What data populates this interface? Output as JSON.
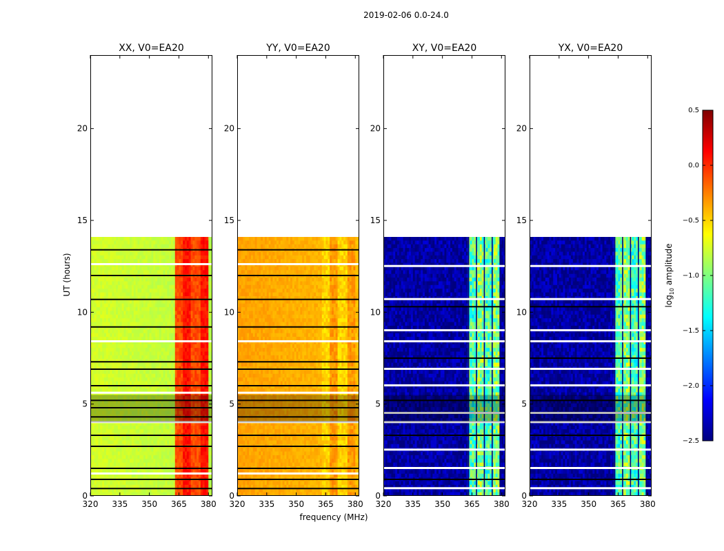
{
  "figure": {
    "suptitle": "2019-02-06 0.0-24.0",
    "xlabel": "frequency (MHz)",
    "ylabel": "UT (hours)"
  },
  "chart_data": [
    {
      "type": "heatmap",
      "title": "XX, V0=EA20",
      "xlim": [
        320,
        382
      ],
      "ylim": [
        0,
        24
      ],
      "xticks": [
        "320",
        "335",
        "350",
        "365",
        "380"
      ],
      "yticks": [
        "0",
        "5",
        "10",
        "15",
        "20"
      ],
      "data_ut_range": [
        0,
        14.1
      ],
      "panel_style": "diag",
      "base_log10_amplitude": -0.75,
      "rfi_band_mhz": [
        363,
        380
      ],
      "rfi_log10_amplitude": -0.05,
      "flagged_ut_hours": [
        0.4,
        0.9,
        1.2,
        1.5,
        2.7,
        3.3,
        4.0,
        4.3,
        4.8,
        5.2,
        5.6,
        6.0,
        6.9,
        7.3,
        8.4,
        9.2,
        10.7,
        12.0,
        12.6,
        13.4
      ]
    },
    {
      "type": "heatmap",
      "title": "YY, V0=EA20",
      "xlim": [
        320,
        382
      ],
      "ylim": [
        0,
        24
      ],
      "xticks": [
        "320",
        "335",
        "350",
        "365",
        "380"
      ],
      "yticks": [
        "0",
        "5",
        "10",
        "15",
        "20"
      ],
      "data_ut_range": [
        0,
        14.1
      ],
      "panel_style": "diag",
      "base_log10_amplitude": -0.35,
      "rfi_band_mhz": [
        363,
        380
      ],
      "rfi_log10_amplitude": -0.45,
      "flagged_ut_hours": [
        0.4,
        0.9,
        1.2,
        1.5,
        2.7,
        3.3,
        4.0,
        4.3,
        4.8,
        5.2,
        5.6,
        6.0,
        6.9,
        7.3,
        8.4,
        9.2,
        10.7,
        12.0,
        12.6,
        13.4
      ]
    },
    {
      "type": "heatmap",
      "title": "XY, V0=EA20",
      "xlim": [
        320,
        382
      ],
      "ylim": [
        0,
        24
      ],
      "xticks": [
        "320",
        "335",
        "350",
        "365",
        "380"
      ],
      "yticks": [
        "0",
        "5",
        "10",
        "15",
        "20"
      ],
      "data_ut_range": [
        0,
        14.1
      ],
      "panel_style": "cross",
      "base_log10_amplitude": -2.4,
      "rfi_band_mhz": [
        363,
        379
      ],
      "rfi_log10_amplitude": -1.1,
      "flagged_ut_hours": [
        0.4,
        0.9,
        1.5,
        2.5,
        3.3,
        4.0,
        4.5,
        5.2,
        6.0,
        6.9,
        7.5,
        8.4,
        9.0,
        10.3,
        10.7,
        12.5
      ]
    },
    {
      "type": "heatmap",
      "title": "YX, V0=EA20",
      "xlim": [
        320,
        382
      ],
      "ylim": [
        0,
        24
      ],
      "xticks": [
        "320",
        "335",
        "350",
        "365",
        "380"
      ],
      "yticks": [
        "0",
        "5",
        "10",
        "15",
        "20"
      ],
      "data_ut_range": [
        0,
        14.1
      ],
      "panel_style": "cross",
      "base_log10_amplitude": -2.4,
      "rfi_band_mhz": [
        363,
        379
      ],
      "rfi_log10_amplitude": -1.1,
      "flagged_ut_hours": [
        0.4,
        0.9,
        1.5,
        2.5,
        3.3,
        4.0,
        4.5,
        5.2,
        6.0,
        6.9,
        7.5,
        8.4,
        9.0,
        10.3,
        10.7,
        12.5
      ]
    }
  ],
  "colorbar": {
    "label_prefix": "log",
    "label_sub": "10",
    "label_suffix": " amplitude",
    "range": [
      -2.5,
      0.5
    ],
    "ticks": [
      "0.5",
      "0.0",
      "−0.5",
      "−1.0",
      "−1.5",
      "−2.0",
      "−2.5"
    ]
  },
  "colors": {
    "jet_stops": [
      "#00007f",
      "#0000ff",
      "#007fff",
      "#00ffff",
      "#7fff7f",
      "#ffff00",
      "#ff7f00",
      "#ff0000",
      "#7f0000"
    ]
  }
}
